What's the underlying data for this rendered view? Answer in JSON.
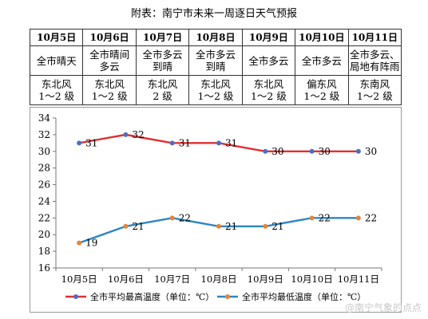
{
  "title": "附表：南宁市未来一周逐日天气预报",
  "table": {
    "dates": [
      "10月5日",
      "10月6日",
      "10月7日",
      "10月8日",
      "10月9日",
      "10月10日",
      "10月11日"
    ],
    "weather": [
      [
        "全市晴天",
        ""
      ],
      [
        "全市晴间",
        "多云"
      ],
      [
        "全市多云",
        "到晴"
      ],
      [
        "全市多云",
        "到晴"
      ],
      [
        "全市多云",
        ""
      ],
      [
        "全市多云",
        ""
      ],
      [
        "全市多云、",
        "局地有阵雨"
      ]
    ],
    "wind": [
      [
        "东北风",
        "1～2 级"
      ],
      [
        "东北风",
        "1～2 级"
      ],
      [
        "东北风",
        "2 级"
      ],
      [
        "东北风",
        "1～2 级"
      ],
      [
        "东北风",
        "1～2 级"
      ],
      [
        "偏东风",
        "1～2 级"
      ],
      [
        "东南风",
        "1～2 级"
      ]
    ]
  },
  "chart_data": {
    "type": "line",
    "categories": [
      "10月5日",
      "10月6日",
      "10月7日",
      "10月8日",
      "10月9日",
      "10月10日",
      "10月11日"
    ],
    "series": [
      {
        "name": "全市平均最高温度（单位：℃）",
        "values": [
          31,
          32,
          31,
          31,
          30,
          30,
          30
        ],
        "color": "#e03030",
        "marker": "#4a6fc4"
      },
      {
        "name": "全市平均最低温度（单位：℃）",
        "values": [
          19,
          21,
          22,
          21,
          21,
          22,
          22
        ],
        "color": "#2e86c1",
        "marker": "#e3843a"
      }
    ],
    "ylim": [
      16,
      34
    ],
    "yticks": [
      16,
      18,
      20,
      22,
      24,
      26,
      28,
      30,
      32,
      34
    ],
    "grid": false,
    "legend": "bottom"
  },
  "watermark": "@南宁气象的点点"
}
